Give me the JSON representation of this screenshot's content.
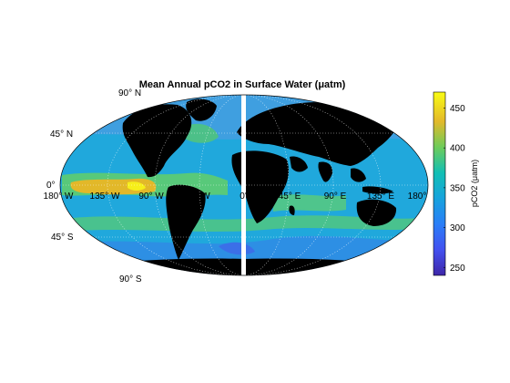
{
  "chart_data": {
    "type": "heatmap",
    "title": "Mean Annual pCO2 in Surface Water (μatm)",
    "projection": "robinson",
    "lon_labels": [
      "180° W",
      "135° W",
      "90° W",
      "45° W",
      "0°",
      "45° E",
      "90° E",
      "135° E",
      "180°"
    ],
    "lat_labels": [
      "90° N",
      "45° N",
      "0°",
      "45° S",
      "90° S"
    ],
    "colorbar": {
      "label": "pCO2 (μatm)",
      "range": [
        240,
        470
      ],
      "ticks": [
        "250",
        "300",
        "350",
        "400",
        "450"
      ],
      "colormap": "parula"
    },
    "grid": true,
    "land_color": "#000000",
    "missing_color": "#ffffff"
  }
}
